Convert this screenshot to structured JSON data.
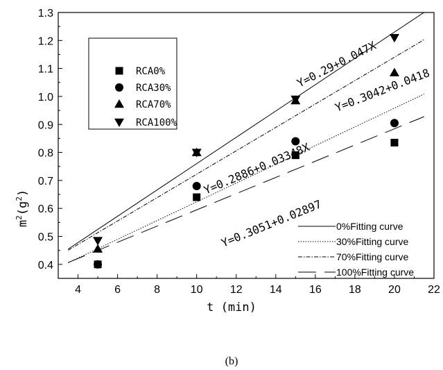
{
  "chart_data": {
    "type": "scatter",
    "xlabel": "t (min)",
    "ylabel_base": "m",
    "ylabel_sup1": "2",
    "ylabel_mid": "(g",
    "ylabel_sup2": "2",
    "ylabel_end": ")",
    "caption": "(b)",
    "xlim": [
      3,
      22
    ],
    "ylim": [
      0.35,
      1.3
    ],
    "x_ticks": [
      4,
      6,
      8,
      10,
      12,
      14,
      16,
      18,
      20,
      22
    ],
    "y_ticks": [
      0.4,
      0.5,
      0.6,
      0.7,
      0.8,
      0.9,
      1.0,
      1.1,
      1.2,
      1.3
    ],
    "x_tick_labels": [
      "4",
      "6",
      "8",
      "10",
      "12",
      "14",
      "16",
      "18",
      "20",
      "22"
    ],
    "y_tick_labels": [
      "0.4",
      "0.5",
      "0.6",
      "0.7",
      "0.8",
      "0.9",
      "1.0",
      "1.1",
      "1.2",
      "1.3"
    ],
    "series": [
      {
        "name": "RCA0%",
        "marker": "square",
        "x": [
          5,
          10,
          15,
          20
        ],
        "y": [
          0.4,
          0.64,
          0.79,
          0.835
        ]
      },
      {
        "name": "RCA30%",
        "marker": "circle",
        "x": [
          5,
          10,
          15,
          20
        ],
        "y": [
          0.4,
          0.68,
          0.84,
          0.905
        ]
      },
      {
        "name": "RCA70%",
        "marker": "triangle-up",
        "x": [
          5,
          10,
          15,
          20
        ],
        "y": [
          0.455,
          0.8,
          0.985,
          1.085
        ]
      },
      {
        "name": "RCA100%",
        "marker": "triangle-down",
        "x": [
          5,
          10,
          15,
          20
        ],
        "y": [
          0.485,
          0.8,
          0.99,
          1.21
        ]
      }
    ],
    "fitting_curves": [
      {
        "name": "0%Fitting curve",
        "style": "solid",
        "intercept": 0.29,
        "slope": 0.047,
        "x_range": [
          3.5,
          21.5
        ]
      },
      {
        "name": "30%Fitting curve",
        "style": "dotted",
        "intercept": 0.2886,
        "slope": 0.03348,
        "x_range": [
          3.5,
          21.5
        ]
      },
      {
        "name": "70%Fitting curve",
        "style": "dashdot",
        "intercept": 0.3042,
        "slope": 0.0418,
        "x_range": [
          3.5,
          21.5
        ]
      },
      {
        "name": "100%Fitting curve",
        "style": "longdash",
        "intercept": 0.3051,
        "slope": 0.02897,
        "x_range": [
          3.5,
          21.5
        ]
      }
    ],
    "equations": [
      "Y=0.29+0.047X",
      "Y=0.3042+0.0418",
      "Y=0.2886+0.03348X",
      "Y=0.3051+0.02897"
    ],
    "legend_markers": [
      "RCA0%",
      "RCA30%",
      "RCA70%",
      "RCA100%"
    ],
    "legend_lines": [
      "0%Fitting curve",
      "30%Fitting curve",
      "70%Fitting curve",
      "100%Fitting curve"
    ],
    "legend_marker_position": "upper-left",
    "legend_line_position": "lower-right",
    "grid": false
  }
}
